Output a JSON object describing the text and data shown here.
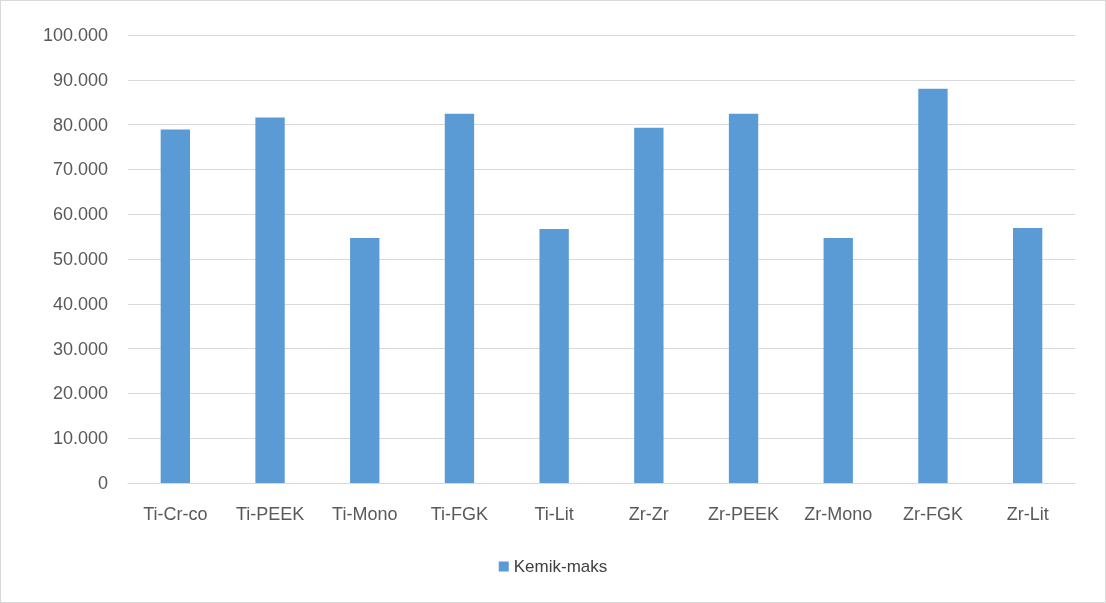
{
  "chart_data": {
    "type": "bar",
    "categories": [
      "Ti-Cr-co",
      "Ti-PEEK",
      "Ti-Mono",
      "Ti-FGK",
      "Ti-Lit",
      "Zr-Zr",
      "Zr-PEEK",
      "Zr-Mono",
      "Zr-FGK",
      "Zr-Lit"
    ],
    "series": [
      {
        "name": "Kemik-maks",
        "color": "#5b9bd5",
        "values": [
          78900,
          81600,
          54700,
          82400,
          56700,
          79300,
          82400,
          54700,
          88000,
          56900
        ]
      }
    ],
    "ylim": [
      0,
      100000
    ],
    "yticks": [
      0,
      {
        "value": 10000,
        "label": "10.000"
      },
      {
        "value": 20000,
        "label": "20.000"
      },
      {
        "value": 30000,
        "label": "30.000"
      },
      {
        "value": 40000,
        "label": "40.000"
      },
      {
        "value": 50000,
        "label": "50.000"
      },
      {
        "value": 60000,
        "label": "60.000"
      },
      {
        "value": 70000,
        "label": "70.000"
      },
      {
        "value": 80000,
        "label": "80.000"
      },
      {
        "value": 90000,
        "label": "90.000"
      },
      {
        "value": 100000,
        "label": "100.000"
      }
    ],
    "grid": "y",
    "legend": "bottom"
  }
}
